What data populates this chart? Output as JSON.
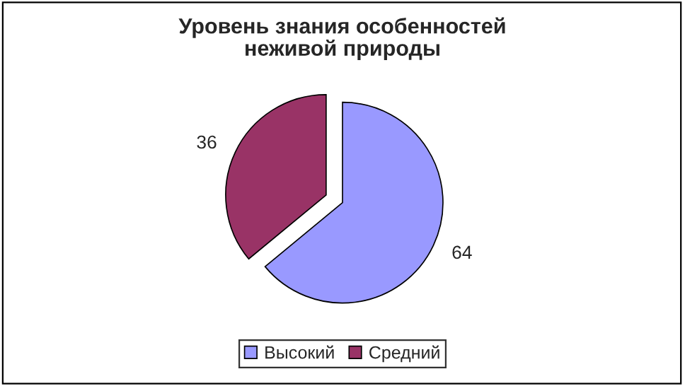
{
  "chart_data": {
    "type": "pie",
    "title": "Уровень знания особенностей\nнеживой природы",
    "categories": [
      "Высокий",
      "Средний"
    ],
    "values": [
      64,
      36
    ],
    "colors": [
      "#9999ff",
      "#993366"
    ],
    "data_labels": true,
    "legend": "bottom"
  }
}
